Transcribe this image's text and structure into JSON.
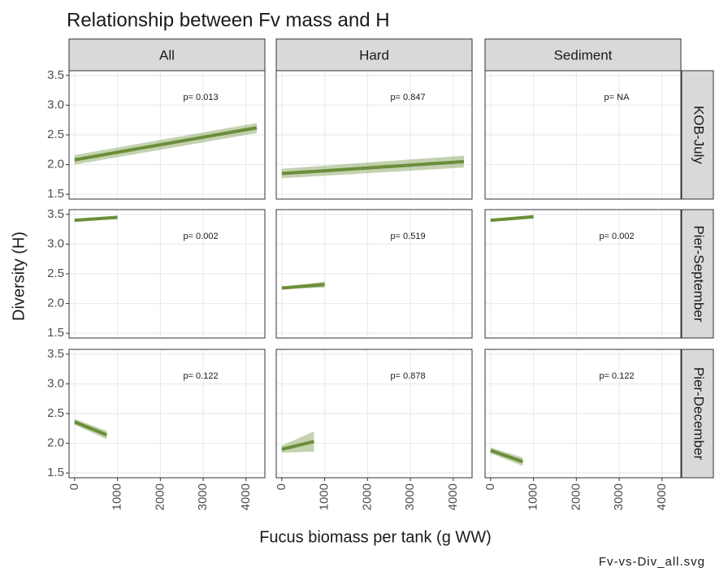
{
  "chart_data": {
    "type": "line",
    "title": "Relationship between Fv mass and H",
    "xlabel": "Fucus biomass per tank (g WW)",
    "ylabel": "Diversity (H)",
    "caption": "Fv-vs-Div_all.svg",
    "columns": [
      "All",
      "Hard",
      "Sediment"
    ],
    "rows": [
      "KOB-July",
      "Pier-September",
      "Pier-December"
    ],
    "color": "#6b8e3a",
    "xlim": [
      -130,
      4440
    ],
    "ylim": [
      1.42,
      3.58
    ],
    "xticks": [
      0,
      1000,
      2000,
      3000,
      4000
    ],
    "yticks": [
      1.5,
      {
        "value": 2,
        "label": "2.0"
      },
      2.5,
      {
        "value": 3,
        "label": "3.0"
      },
      3.5
    ],
    "grid": true,
    "panels": [
      [
        {
          "annotation": "p= 0.013",
          "x": [
            0,
            4250
          ],
          "values": [
            2.08,
            2.62
          ],
          "lower": [
            2.0,
            2.53
          ],
          "upper": [
            2.16,
            2.7
          ]
        },
        {
          "annotation": "p= 0.847",
          "x": [
            0,
            4250
          ],
          "values": [
            1.85,
            2.05
          ],
          "lower": [
            1.77,
            1.95
          ],
          "upper": [
            1.93,
            2.15
          ]
        },
        {
          "annotation": "p= NA",
          "x": [],
          "values": [],
          "lower": [],
          "upper": []
        }
      ],
      [
        {
          "annotation": "p= 0.002",
          "x": [
            0,
            1000
          ],
          "values": [
            3.4,
            3.45
          ],
          "lower": [
            3.38,
            3.42
          ],
          "upper": [
            3.42,
            3.48
          ]
        },
        {
          "annotation": "p= 0.519",
          "x": [
            0,
            1000
          ],
          "values": [
            2.26,
            2.32
          ],
          "lower": [
            2.24,
            2.27
          ],
          "upper": [
            2.28,
            2.37
          ]
        },
        {
          "annotation": "p= 0.002",
          "x": [
            0,
            1000
          ],
          "values": [
            3.4,
            3.46
          ],
          "lower": [
            3.38,
            3.43
          ],
          "upper": [
            3.42,
            3.49
          ]
        }
      ],
      [
        {
          "annotation": "p= 0.122",
          "x": [
            0,
            750
          ],
          "values": [
            2.36,
            2.14
          ],
          "lower": [
            2.31,
            2.07
          ],
          "upper": [
            2.41,
            2.21
          ]
        },
        {
          "annotation": "p= 0.878",
          "x": [
            0,
            750
          ],
          "values": [
            1.9,
            2.03
          ],
          "lower": [
            1.84,
            1.86
          ],
          "upper": [
            1.96,
            2.2
          ]
        },
        {
          "annotation": "p= 0.122",
          "x": [
            0,
            750
          ],
          "values": [
            1.88,
            1.69
          ],
          "lower": [
            1.83,
            1.62
          ],
          "upper": [
            1.93,
            1.76
          ]
        }
      ]
    ]
  }
}
